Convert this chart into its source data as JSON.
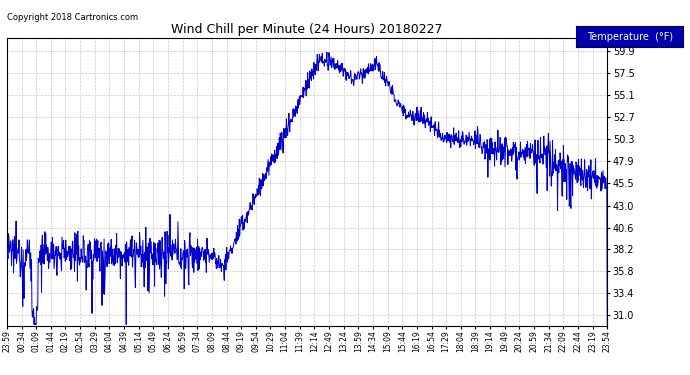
{
  "title": "Wind Chill per Minute (24 Hours) 20180227",
  "copyright": "Copyright 2018 Cartronics.com",
  "legend_label": "Temperature  (°F)",
  "line_color": "#0000cc",
  "background_color": "#ffffff",
  "plot_bg_color": "#ffffff",
  "grid_color": "#bbbbbb",
  "legend_bg": "#0000aa",
  "legend_fg": "#ffffff",
  "yticks": [
    31.0,
    33.4,
    35.8,
    38.2,
    40.6,
    43.0,
    45.5,
    47.9,
    50.3,
    52.7,
    55.1,
    57.5,
    59.9
  ],
  "ylim": [
    29.8,
    61.4
  ],
  "x_labels": [
    "23:59",
    "00:34",
    "01:09",
    "01:44",
    "02:19",
    "02:54",
    "03:29",
    "04:04",
    "04:39",
    "05:14",
    "05:49",
    "06:24",
    "06:59",
    "07:34",
    "08:09",
    "08:44",
    "09:19",
    "09:54",
    "10:29",
    "11:04",
    "11:39",
    "12:14",
    "12:49",
    "13:24",
    "13:59",
    "14:34",
    "15:09",
    "15:44",
    "16:19",
    "16:54",
    "17:29",
    "18:04",
    "18:39",
    "19:14",
    "19:49",
    "20:24",
    "20:59",
    "21:34",
    "22:09",
    "22:44",
    "23:19",
    "23:54"
  ]
}
